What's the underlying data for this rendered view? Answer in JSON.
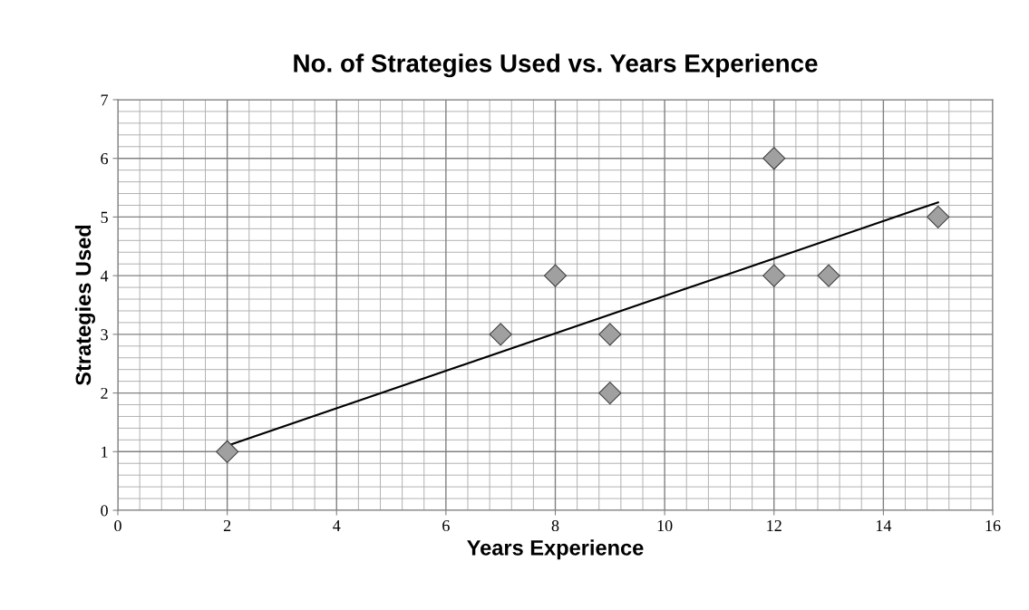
{
  "chart_data": {
    "type": "scatter",
    "title": "No. of Strategies Used vs. Years Experience",
    "xlabel": "Years Experience",
    "ylabel": "Strategies Used",
    "xlim": [
      0,
      16
    ],
    "ylim": [
      0,
      7
    ],
    "xticks": [
      0,
      2,
      4,
      6,
      8,
      10,
      12,
      14,
      16
    ],
    "yticks": [
      0,
      1,
      2,
      3,
      4,
      5,
      6,
      7
    ],
    "grid": true,
    "marker": "diamond",
    "series": [
      {
        "color": "#a0a0a0",
        "x": [
          2,
          7,
          8,
          9,
          9,
          12,
          12,
          13,
          15
        ],
        "values": [
          1,
          3,
          4,
          3,
          2,
          6,
          4,
          4,
          5
        ]
      },
      {
        "type": "line",
        "marker": "none",
        "color": "#000000",
        "x": [
          2,
          15
        ],
        "values": [
          1.1,
          5.25
        ]
      }
    ]
  }
}
